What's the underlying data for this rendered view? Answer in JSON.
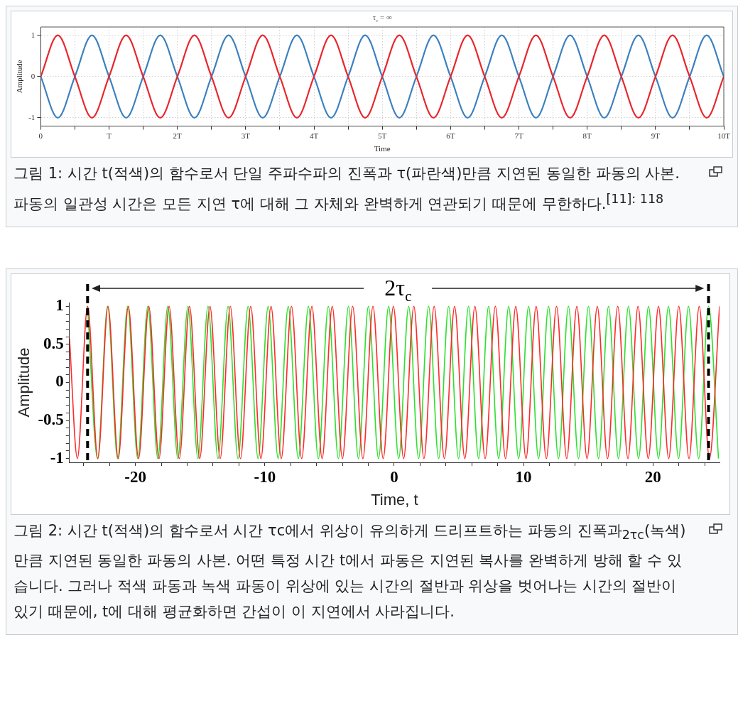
{
  "chart_data": [
    {
      "type": "line",
      "title": "τ$_{c}$ = ∞",
      "xlabel": "Time",
      "ylabel": "Amplitude",
      "grid": true,
      "marker": "none",
      "x": [
        0,
        0.25,
        0.5,
        0.75,
        1,
        1.25,
        1.5,
        1.75,
        2,
        2.25,
        2.5,
        2.75,
        3,
        3.25,
        3.5,
        3.75,
        4,
        4.25,
        4.5,
        4.75,
        5,
        5.25,
        5.5,
        5.75,
        6,
        6.25,
        6.5,
        6.75,
        7,
        7.25,
        7.5,
        7.75,
        8,
        8.25,
        8.5,
        8.75,
        9,
        9.25,
        9.5,
        9.75,
        10
      ],
      "series": [
        {
          "color": "#e8262c",
          "values": [
            0,
            1,
            0,
            -1,
            0,
            1,
            0,
            -1,
            0,
            1,
            0,
            -1,
            0,
            1,
            0,
            -1,
            0,
            1,
            0,
            -1,
            0,
            1,
            0,
            -1,
            0,
            1,
            0,
            -1,
            0,
            1,
            0,
            -1,
            0,
            1,
            0,
            -1,
            0,
            1,
            0,
            -1,
            0
          ]
        },
        {
          "color": "#3c80bf",
          "values": [
            0,
            -1,
            0,
            1,
            0,
            -1,
            0,
            1,
            0,
            -1,
            0,
            1,
            0,
            -1,
            0,
            1,
            0,
            -1,
            0,
            1,
            0,
            -1,
            0,
            1,
            0,
            -1,
            0,
            1,
            0,
            -1,
            0,
            1,
            0,
            -1,
            0,
            1,
            0,
            -1,
            0,
            1,
            0
          ]
        }
      ],
      "xlim": [
        0,
        10
      ],
      "ylim": [
        -1.2,
        1.2
      ],
      "yticks": [
        -1,
        0,
        1
      ],
      "xticks": [
        0,
        {
          "value": 0.5,
          "label": null
        },
        {
          "value": 1,
          "label": "T"
        },
        {
          "value": 1.5,
          "label": null
        },
        {
          "value": 2,
          "label": "2T"
        },
        {
          "value": 2.5,
          "label": null
        },
        {
          "value": 3,
          "label": "3T"
        },
        {
          "value": 3.5,
          "label": null
        },
        {
          "value": 4,
          "label": "4T"
        },
        {
          "value": 4.5,
          "label": null
        },
        {
          "value": 5,
          "label": "5T"
        },
        {
          "value": 5.5,
          "label": null
        },
        {
          "value": 6,
          "label": "6T"
        },
        {
          "value": 6.5,
          "label": null
        },
        {
          "value": 7,
          "label": "7T"
        },
        {
          "value": 7.5,
          "label": null
        },
        {
          "value": 8,
          "label": "8T"
        },
        {
          "value": 8.5,
          "label": null
        },
        {
          "value": 9,
          "label": "9T"
        },
        {
          "value": 9.5,
          "label": null
        },
        {
          "value": 10,
          "label": "10T"
        }
      ],
      "annotations": [
        "그림 1: 시간 t(적색)의 함수로서 단일 주파수파의 진폭과 τ(파란색)만큼 지연된 동일한 파동의 사본. 파동의 일관성 시간은 모든 지연 τ에 대해 그 자체와 완벽하게 연관되기 때문에 무한하다.$^{[11]: 118}$"
      ]
    },
    {
      "type": "line",
      "xlabel": "Time, t",
      "ylabel": "Amplitude",
      "marker": "none",
      "series": [
        {
          "color": "#ff2a2a",
          "x": [
            -25.1,
            -24.49,
            -23.7,
            -22.91,
            -22.12,
            -21.33,
            -20.55,
            -19.76,
            -18.97,
            -18.18,
            -17.4,
            -16.61,
            -15.82,
            -15.03,
            -14.24,
            -13.45,
            -12.67,
            -11.88,
            -11.09,
            -10.3,
            -9.52,
            -8.73,
            -7.94,
            -7.15,
            -6.36,
            -5.57,
            -4.79,
            -4.0,
            -3.21,
            -2.42,
            -1.64,
            -0.85,
            -0.06,
            0.73,
            1.52,
            2.3,
            3.09,
            3.88,
            4.67,
            5.46,
            6.24,
            7.03,
            7.82,
            8.61,
            9.4,
            10.19,
            10.97,
            11.76,
            12.55,
            13.34,
            14.12,
            14.91,
            15.7,
            16.49,
            17.28,
            18.07,
            18.85,
            19.64,
            20.43,
            21.22,
            22.0,
            22.79,
            23.58,
            24.37,
            25.15
          ],
          "values": [
            0.58,
            -1,
            1,
            -1,
            1,
            -1,
            1,
            -1,
            1,
            -1,
            1,
            -1,
            1,
            -1,
            1,
            -1,
            1,
            -1,
            1,
            -1,
            1,
            -1,
            1,
            -1,
            1,
            -1,
            1,
            -1,
            1,
            -1,
            1,
            -1,
            1,
            -1,
            1,
            -1,
            1,
            -1,
            1,
            -1,
            1,
            -1,
            1,
            -1,
            1,
            -1,
            1,
            -1,
            1,
            -1,
            1,
            -1,
            1,
            -1,
            1,
            -1,
            1,
            -1,
            1,
            -1,
            1,
            -1,
            1,
            -1,
            1
          ]
        },
        {
          "color": "#2ee02e",
          "x": [
            -23.7,
            -22.93,
            -22.15,
            -21.38,
            -20.6,
            -19.82,
            -19.04,
            -18.27,
            -17.5,
            -16.72,
            -15.94,
            -15.17,
            -14.39,
            -13.62,
            -12.84,
            -12.07,
            -11.29,
            -10.52,
            -9.74,
            -8.97,
            -8.19,
            -7.41,
            -6.63,
            -5.86,
            -5.09,
            -4.31,
            -3.53,
            -2.76,
            -1.99,
            -1.21,
            -0.43,
            0.35,
            1.12,
            1.89,
            2.66,
            3.44,
            4.21,
            4.98,
            5.75,
            6.53,
            7.3,
            8.08,
            8.85,
            9.62,
            10.39,
            11.16,
            11.93,
            12.7,
            13.47,
            14.25,
            15.02,
            15.8,
            16.57,
            17.34,
            18.11,
            18.89,
            19.66,
            20.43,
            21.2,
            21.98,
            22.75,
            23.54,
            24.3,
            25.07
          ],
          "values": [
            1,
            -1,
            1,
            -1,
            1,
            -1,
            1,
            -1,
            1,
            -1,
            1,
            -1,
            1,
            -1,
            1,
            -1,
            1,
            -1,
            1,
            -1,
            1,
            -1,
            1,
            -1,
            1,
            -1,
            1,
            -1,
            1,
            -1,
            1,
            -1,
            1,
            -1,
            1,
            -1,
            1,
            -1,
            1,
            -1,
            1,
            -1,
            1,
            -1,
            1,
            -1,
            1,
            -1,
            1,
            -1,
            1,
            -1,
            1,
            -1,
            1,
            -1,
            1,
            -1,
            1,
            -1,
            1,
            -1,
            1,
            -1
          ]
        }
      ],
      "xlim": [
        -25.1,
        25.15
      ],
      "ylim": [
        -1.05,
        1.05
      ],
      "xticks": [
        {
          "value": -24,
          "label": null
        },
        {
          "value": -22,
          "label": null
        },
        -20,
        {
          "value": -18,
          "label": null
        },
        {
          "value": -16,
          "label": null
        },
        {
          "value": -14,
          "label": null
        },
        {
          "value": -12,
          "label": null
        },
        -10,
        {
          "value": -8,
          "label": null
        },
        {
          "value": -6,
          "label": null
        },
        {
          "value": -4,
          "label": null
        },
        {
          "value": -2,
          "label": null
        },
        0,
        {
          "value": 2,
          "label": null
        },
        {
          "value": 4,
          "label": null
        },
        {
          "value": 6,
          "label": null
        },
        {
          "value": 8,
          "label": null
        },
        10,
        {
          "value": 12,
          "label": null
        },
        {
          "value": 14,
          "label": null
        },
        {
          "value": 16,
          "label": null
        },
        {
          "value": 18,
          "label": null
        },
        20,
        {
          "value": 22,
          "label": null
        },
        {
          "value": 24,
          "label": null
        }
      ],
      "yticks": [
        -1,
        {
          "value": -0.9,
          "label": null
        },
        {
          "value": -0.8,
          "label": null
        },
        {
          "value": -0.7,
          "label": null
        },
        {
          "value": -0.6,
          "label": null
        },
        -0.5,
        {
          "value": -0.4,
          "label": null
        },
        {
          "value": -0.3,
          "label": null
        },
        {
          "value": -0.2,
          "label": null
        },
        {
          "value": -0.1,
          "label": null
        },
        0,
        {
          "value": 0.1,
          "label": null
        },
        {
          "value": 0.2,
          "label": null
        },
        {
          "value": 0.3,
          "label": null
        },
        {
          "value": 0.4,
          "label": null
        },
        0.5,
        {
          "value": 0.6,
          "label": null
        },
        {
          "value": 0.7,
          "label": null
        },
        {
          "value": 0.8,
          "label": null
        },
        {
          "value": 0.9,
          "label": null
        },
        1
      ],
      "ref_lines": [
        {
          "axis": "x",
          "value": -23.7,
          "color": "#000000",
          "line_style": "dashed"
        },
        {
          "axis": "x",
          "value": 24.3,
          "color": "#000000",
          "line_style": "dashed"
        }
      ],
      "annotations": [
        "2τ$_{c}$",
        "그림 2: 시간 t(적색)의 함수로서 시간 τc에서 위상이 유의하게 드리프트하는 파동의 진폭과$_{2τc}$(녹색)만큼 지연된 동일한 파동의 사본. 어떤 특정 시간 t에서 파동은 지연된 복사를 완벽하게 방해 할 수 있습니다. 그러나 적색 파동과 녹색 파동이 위상에 있는 시간의 절반과 위상을 벗어나는 시간의 절반이 있기 때문에, t에 대해 평균화하면 간섭이 이 지연에서 사라집니다."
      ]
    }
  ]
}
